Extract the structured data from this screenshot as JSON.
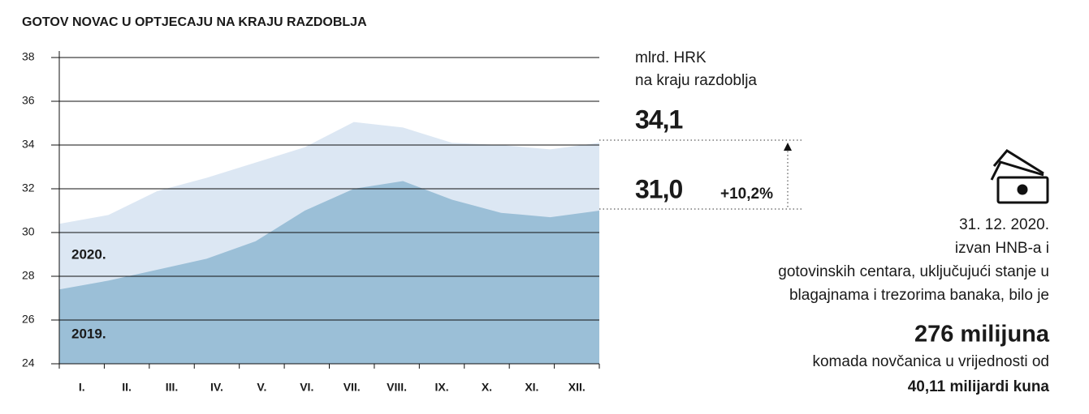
{
  "chart_data": {
    "type": "area",
    "title": "GOTOV NOVAC U OPTJECAJU NA KRAJU RAZDOBLJA",
    "unit_label": [
      "mlrd. HRK",
      "na kraju razdoblja"
    ],
    "categories": [
      "I.",
      "II.",
      "III.",
      "IV.",
      "V.",
      "VI.",
      "VII.",
      "VIII.",
      "IX.",
      "X.",
      "XI.",
      "XII."
    ],
    "series": [
      {
        "name": "2020.",
        "color": "#dce7f3",
        "values": [
          30.4,
          30.8,
          31.9,
          32.5,
          33.2,
          33.9,
          35.05,
          34.8,
          34.1,
          34.0,
          33.8,
          34.1
        ],
        "value_labels": [
          null,
          null,
          null,
          null,
          null,
          null,
          null,
          null,
          null,
          null,
          null,
          "34,1"
        ]
      },
      {
        "name": "2019.",
        "color": "#9bbfd7",
        "values": [
          27.4,
          27.8,
          28.3,
          28.8,
          29.6,
          31.0,
          32.0,
          32.35,
          31.5,
          30.9,
          30.7,
          31.0
        ],
        "value_labels": [
          null,
          null,
          null,
          null,
          null,
          null,
          null,
          null,
          null,
          null,
          null,
          "31,0"
        ]
      }
    ],
    "change_label": "+10,2%",
    "ylim": [
      24,
      38
    ],
    "yticks": [
      24,
      26,
      28,
      30,
      32,
      34,
      36,
      38
    ],
    "grid": true,
    "note": {
      "lines": [
        "31. 12. 2020.",
        "izvan HNB-a i",
        "gotovinskih centara, uključujući stanje u",
        "blagajnama i trezorima banaka, bilo je"
      ],
      "highlight": "276 milijuna",
      "after": "komada novčanica u vrijednosti od",
      "amount": "40,11 milijardi kuna"
    }
  }
}
